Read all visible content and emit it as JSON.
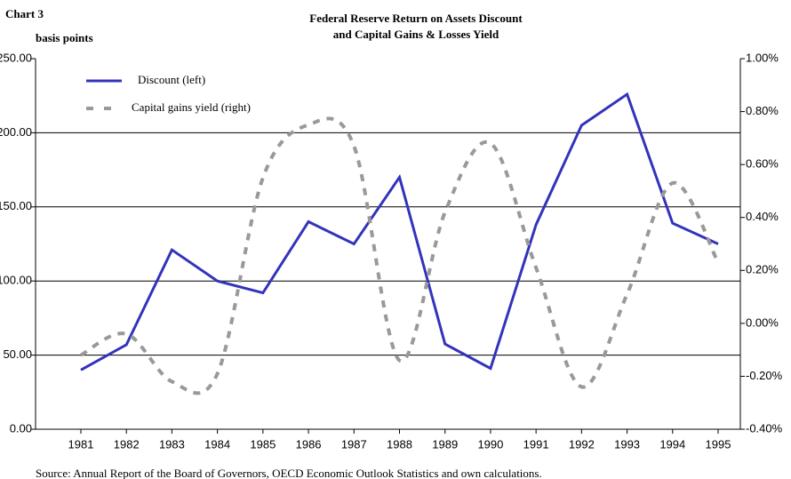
{
  "chart_data": {
    "type": "line",
    "label": "Chart 3",
    "title": [
      "Federal Reserve Return on Assets Discount",
      "and Capital Gains & Losses Yield"
    ],
    "y_label": "basis points",
    "source": "Source: Annual Report of the Board of Governors, OECD Economic Outlook Statistics and own calculations.",
    "categories": [
      "1981",
      "1982",
      "1983",
      "1984",
      "1985",
      "1986",
      "1987",
      "1988",
      "1989",
      "1990",
      "1991",
      "1992",
      "1993",
      "1994",
      "1995"
    ],
    "series": [
      {
        "name": "Discount (left)",
        "color": "#3333bb",
        "style": "solid",
        "axis": "y",
        "values": [
          40,
          57,
          121,
          100,
          92,
          140,
          125,
          170,
          57.5,
          41,
          138,
          205,
          226,
          139,
          125
        ]
      },
      {
        "name": "Capital gains yield (right)",
        "color": "#999999",
        "style": "dashed",
        "axis": "y2",
        "values": [
          -0.12,
          -0.04,
          -0.22,
          -0.19,
          0.55,
          0.75,
          0.67,
          -0.14,
          0.42,
          0.68,
          0.21,
          -0.24,
          0.11,
          0.53,
          0.23
        ]
      }
    ],
    "ylim": [
      0,
      250
    ],
    "yticks": [
      {
        "value": 0,
        "label": "0.00"
      },
      {
        "value": 50,
        "label": "50.00"
      },
      {
        "value": 100,
        "label": "100.00"
      },
      {
        "value": 150,
        "label": "150.00"
      },
      {
        "value": 200,
        "label": "200.00"
      },
      {
        "value": 250,
        "label": "250.00"
      }
    ],
    "y2lim": [
      -0.4,
      1.0
    ],
    "y2ticks": [
      {
        "value": -0.4,
        "label": "-0.40%"
      },
      {
        "value": -0.2,
        "label": "-0.20%"
      },
      {
        "value": 0,
        "label": "0.00%"
      },
      {
        "value": 0.2,
        "label": "0.20%"
      },
      {
        "value": 0.4,
        "label": "0.40%"
      },
      {
        "value": 0.6,
        "label": "0.60%"
      },
      {
        "value": 0.8,
        "label": "0.80%"
      },
      {
        "value": 1.0,
        "label": "1.00%"
      }
    ],
    "grid": true,
    "legend": "upper left"
  }
}
